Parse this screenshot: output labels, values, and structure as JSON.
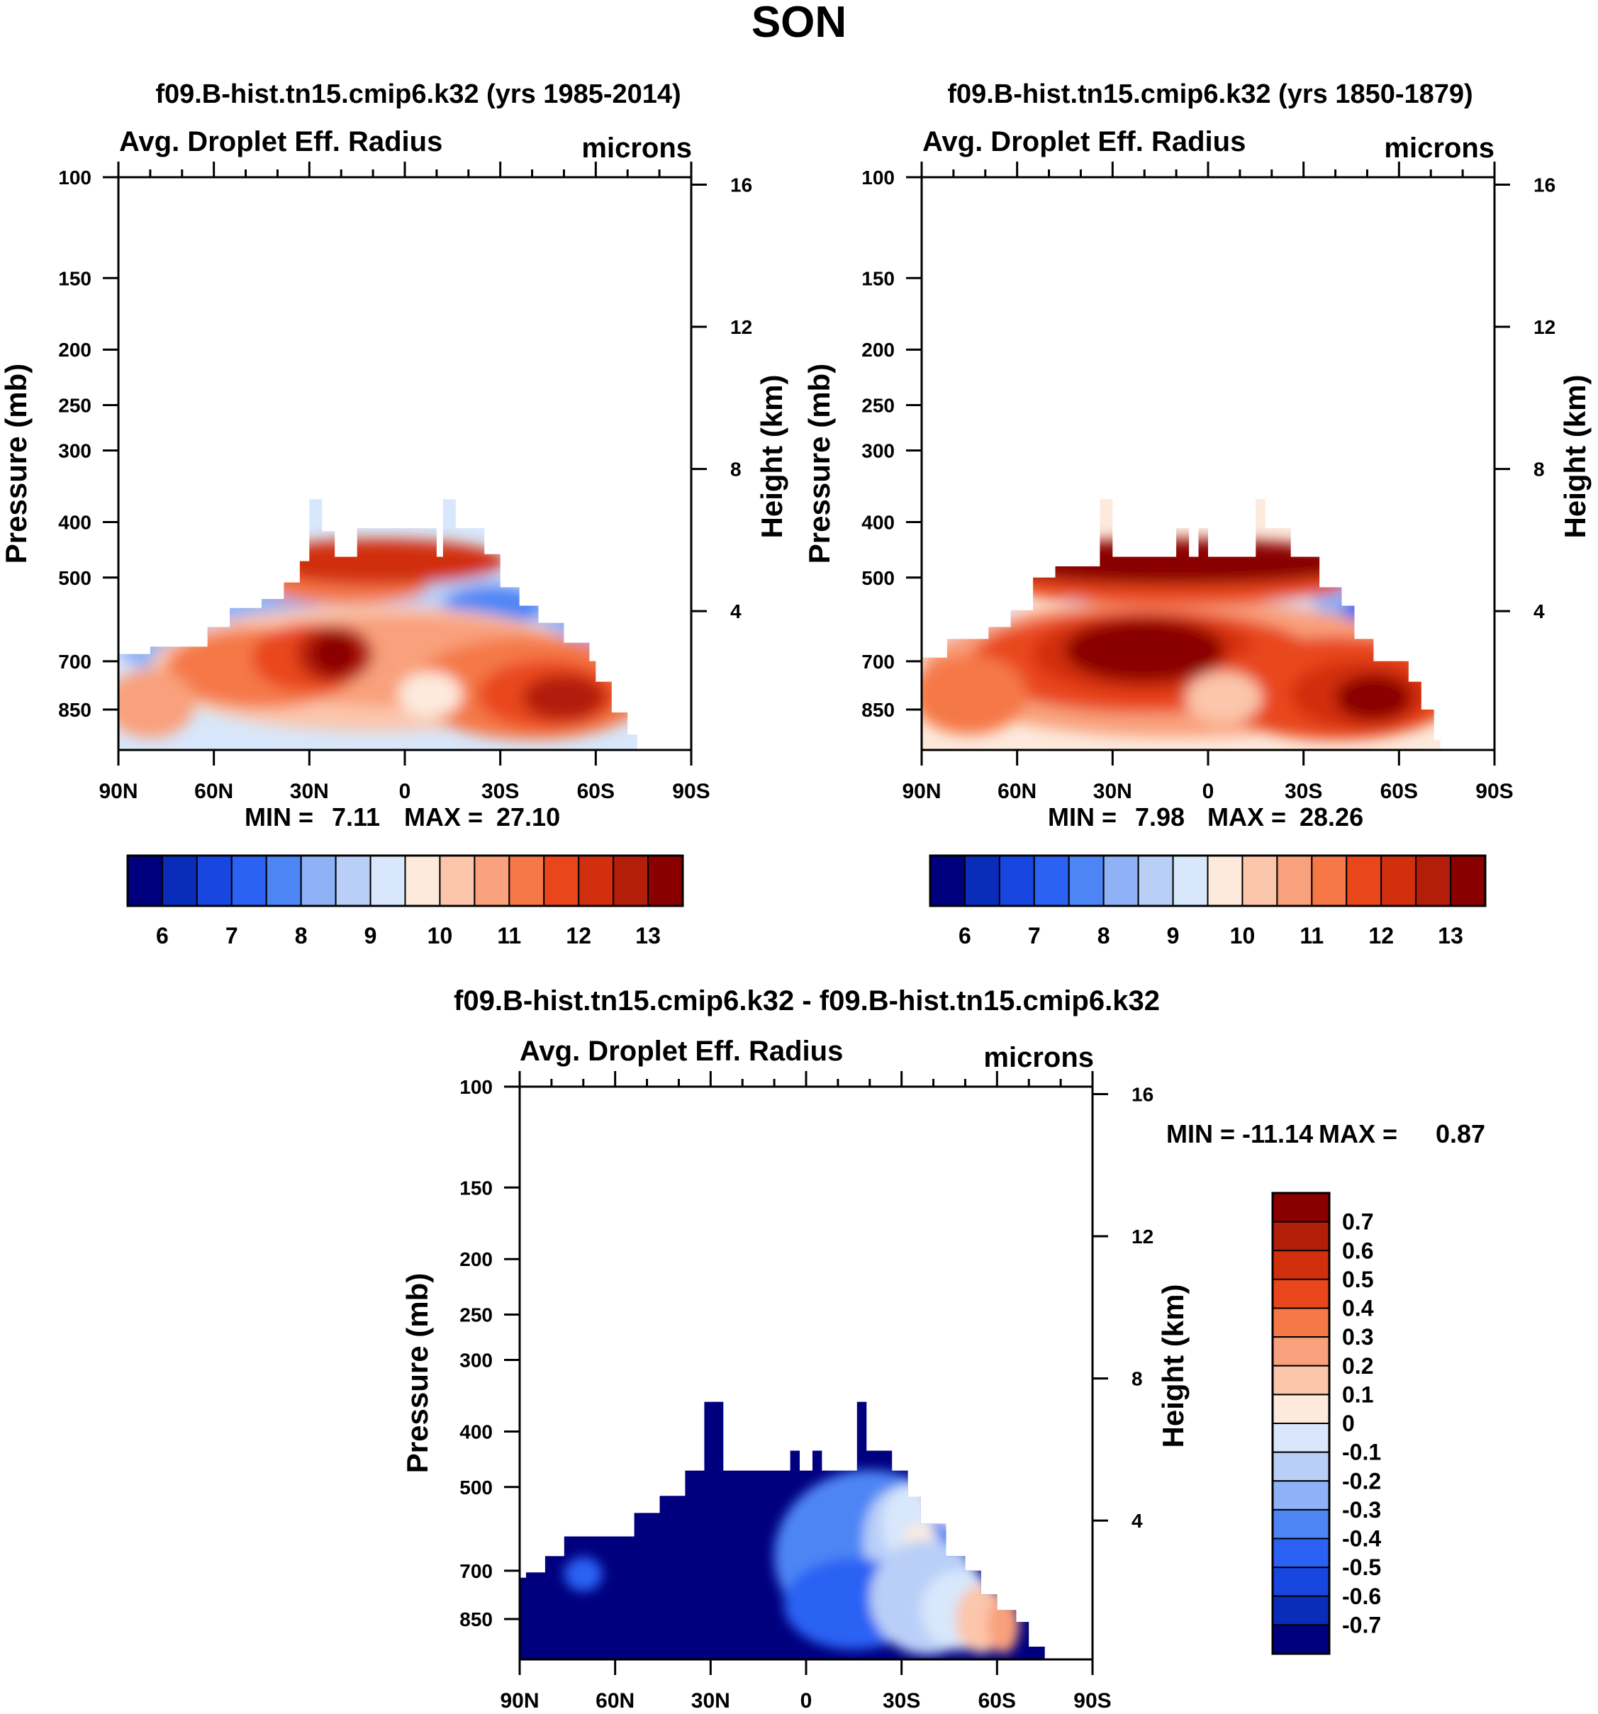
{
  "page_title": "SON",
  "colors": {
    "abs_levels": [
      "#00007f",
      "#0a2cba",
      "#1746e0",
      "#2b62f4",
      "#4d85f5",
      "#8fb2f6",
      "#b9cff8",
      "#d8e7fb",
      "#fdeadd",
      "#fbc6ac",
      "#f9a07c",
      "#f57846",
      "#e9461c",
      "#d12f0d",
      "#b31e0a",
      "#8a0000"
    ],
    "diff_levels": [
      "#00007f",
      "#0a2cba",
      "#1746e0",
      "#2b62f4",
      "#4d85f5",
      "#8fb2f6",
      "#b9cff8",
      "#d8e7fb",
      "#fdeadd",
      "#fbc6ac",
      "#f9a07c",
      "#f57846",
      "#e9461c",
      "#d12f0d",
      "#b31e0a",
      "#8a0000"
    ]
  },
  "chart_data": [
    {
      "type": "heatmap",
      "id": "panel_a",
      "title": "f09.B-hist.tn15.cmip6.k32 (yrs 1985-2014)",
      "left_string": "Avg. Droplet Eff. Radius",
      "right_string": "microns",
      "xlabel": "",
      "ylabel": "Pressure (mb)",
      "ylabel_right": "Height (km)",
      "x_ticklabels": [
        "90N",
        "60N",
        "30N",
        "0",
        "30S",
        "60S",
        "90S"
      ],
      "y_ticks": [
        100,
        150,
        200,
        250,
        300,
        400,
        500,
        700,
        850
      ],
      "ylim": [
        1000,
        100
      ],
      "right_ticks_km": [
        4,
        8,
        12,
        16
      ],
      "min_label": "MIN =",
      "min_value": "7.11",
      "max_label": "MAX =",
      "max_value": "27.10",
      "colorbar_labels": [
        "6",
        "7",
        "8",
        "9",
        "10",
        "11",
        "12",
        "13"
      ],
      "regions": [
        {
          "lat": -35,
          "p": 680,
          "value": 13.5
        },
        {
          "lat": 2,
          "p": 420,
          "value": 14.5
        },
        {
          "lat": 55,
          "p": 800,
          "value": 12.5
        },
        {
          "lat": 30,
          "p": 560,
          "value": 8.5
        },
        {
          "lat": -60,
          "p": 640,
          "value": 8.7
        }
      ]
    },
    {
      "type": "heatmap",
      "id": "panel_b",
      "title": "f09.B-hist.tn15.cmip6.k32 (yrs 1850-1879)",
      "left_string": "Avg. Droplet Eff. Radius",
      "right_string": "microns",
      "xlabel": "",
      "ylabel": "Pressure (mb)",
      "ylabel_right": "Height (km)",
      "x_ticklabels": [
        "90N",
        "60N",
        "30N",
        "0",
        "30S",
        "60S",
        "90S"
      ],
      "y_ticks": [
        100,
        150,
        200,
        250,
        300,
        400,
        500,
        700,
        850
      ],
      "ylim": [
        1000,
        100
      ],
      "right_ticks_km": [
        4,
        8,
        12,
        16
      ],
      "min_label": "MIN =",
      "min_value": "7.98",
      "max_label": "MAX =",
      "max_value": "28.26",
      "colorbar_labels": [
        "6",
        "7",
        "8",
        "9",
        "10",
        "11",
        "12",
        "13"
      ],
      "regions": [
        {
          "lat": -20,
          "p": 660,
          "value": 14.0
        },
        {
          "lat": 5,
          "p": 440,
          "value": 14.5
        },
        {
          "lat": 55,
          "p": 790,
          "value": 13.0
        },
        {
          "lat": 70,
          "p": 600,
          "value": 9.0
        }
      ]
    },
    {
      "type": "heatmap",
      "id": "panel_c",
      "title": "f09.B-hist.tn15.cmip6.k32 - f09.B-hist.tn15.cmip6.k32",
      "left_string": "Avg. Droplet Eff. Radius",
      "right_string": "microns",
      "xlabel": "",
      "ylabel": "Pressure (mb)",
      "ylabel_right": "Height (km)",
      "x_ticklabels": [
        "90N",
        "60N",
        "30N",
        "0",
        "30S",
        "60S",
        "90S"
      ],
      "y_ticks": [
        100,
        150,
        200,
        250,
        300,
        400,
        500,
        700,
        850
      ],
      "ylim": [
        1000,
        100
      ],
      "right_ticks_km": [
        4,
        8,
        12,
        16
      ],
      "min_label": "MIN =",
      "min_value": "-11.14",
      "max_label": "MAX =",
      "max_value": "0.87",
      "colorbar_labels": [
        "0.7",
        "0.6",
        "0.5",
        "0.4",
        "0.3",
        "0.2",
        "0.1",
        "0",
        "-0.1",
        "-0.2",
        "-0.3",
        "-0.4",
        "-0.5",
        "-0.6",
        "-0.7"
      ],
      "regions": [
        {
          "lat": -10,
          "p": 620,
          "value": -0.8
        },
        {
          "lat": 25,
          "p": 700,
          "value": -0.3
        },
        {
          "lat": 60,
          "p": 820,
          "value": 0.2
        }
      ]
    }
  ]
}
